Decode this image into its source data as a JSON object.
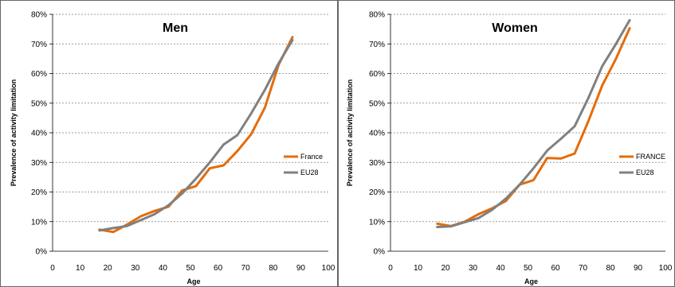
{
  "chart_data": [
    {
      "type": "line",
      "title": "Men",
      "xlabel": "Age",
      "ylabel": "Prevalence of activity  limitation",
      "xlim": [
        0,
        100
      ],
      "ylim": [
        0,
        80
      ],
      "xticks": [
        "0",
        "10",
        "20",
        "30",
        "40",
        "50",
        "60",
        "70",
        "80",
        "90",
        "100"
      ],
      "yticks": [
        "0%",
        "10%",
        "20%",
        "30%",
        "40%",
        "50%",
        "60%",
        "70%",
        "80%"
      ],
      "grid": "horizontal",
      "legend_position": "right",
      "series": [
        {
          "name": "France",
          "color": "#E46C0A",
          "x": [
            17,
            22,
            27,
            32,
            37,
            42,
            47,
            52,
            57,
            62,
            67,
            72,
            77,
            82,
            87
          ],
          "y": [
            7.3,
            6.5,
            9.0,
            11.8,
            13.6,
            15.0,
            20.5,
            22.0,
            28.0,
            29.0,
            33.8,
            39.5,
            48.5,
            63.0,
            72.3
          ]
        },
        {
          "name": "EU28",
          "color": "#808080",
          "x": [
            17,
            22,
            27,
            32,
            37,
            42,
            47,
            52,
            57,
            62,
            67,
            72,
            77,
            82,
            87
          ],
          "y": [
            7.0,
            7.8,
            8.5,
            10.5,
            12.5,
            15.5,
            19.5,
            24.5,
            30.0,
            36.0,
            39.2,
            46.5,
            54.5,
            63.5,
            71.3
          ]
        }
      ]
    },
    {
      "type": "line",
      "title": "Women",
      "xlabel": "Age",
      "ylabel": "Prevalence of activity  limitation",
      "xlim": [
        0,
        100
      ],
      "ylim": [
        0,
        80
      ],
      "xticks": [
        "0",
        "10",
        "20",
        "30",
        "40",
        "50",
        "60",
        "70",
        "80",
        "90",
        "100"
      ],
      "yticks": [
        "0%",
        "10%",
        "20%",
        "30%",
        "40%",
        "50%",
        "60%",
        "70%",
        "80%"
      ],
      "grid": "horizontal",
      "legend_position": "right",
      "series": [
        {
          "name": "FRANCE",
          "color": "#E46C0A",
          "x": [
            17,
            22,
            27,
            32,
            37,
            42,
            47,
            52,
            57,
            62,
            67,
            72,
            77,
            82,
            87
          ],
          "y": [
            9.3,
            8.5,
            10.0,
            12.5,
            14.5,
            17.0,
            22.5,
            24.0,
            31.5,
            31.3,
            33.0,
            44.0,
            56.0,
            65.0,
            75.3
          ]
        },
        {
          "name": "EU28",
          "color": "#808080",
          "x": [
            17,
            22,
            27,
            32,
            37,
            42,
            47,
            52,
            57,
            62,
            67,
            72,
            77,
            82,
            87
          ],
          "y": [
            8.2,
            8.4,
            9.8,
            11.2,
            14.0,
            17.8,
            22.5,
            28.0,
            34.0,
            38.0,
            42.2,
            51.8,
            62.5,
            70.0,
            78.0
          ]
        }
      ]
    }
  ]
}
